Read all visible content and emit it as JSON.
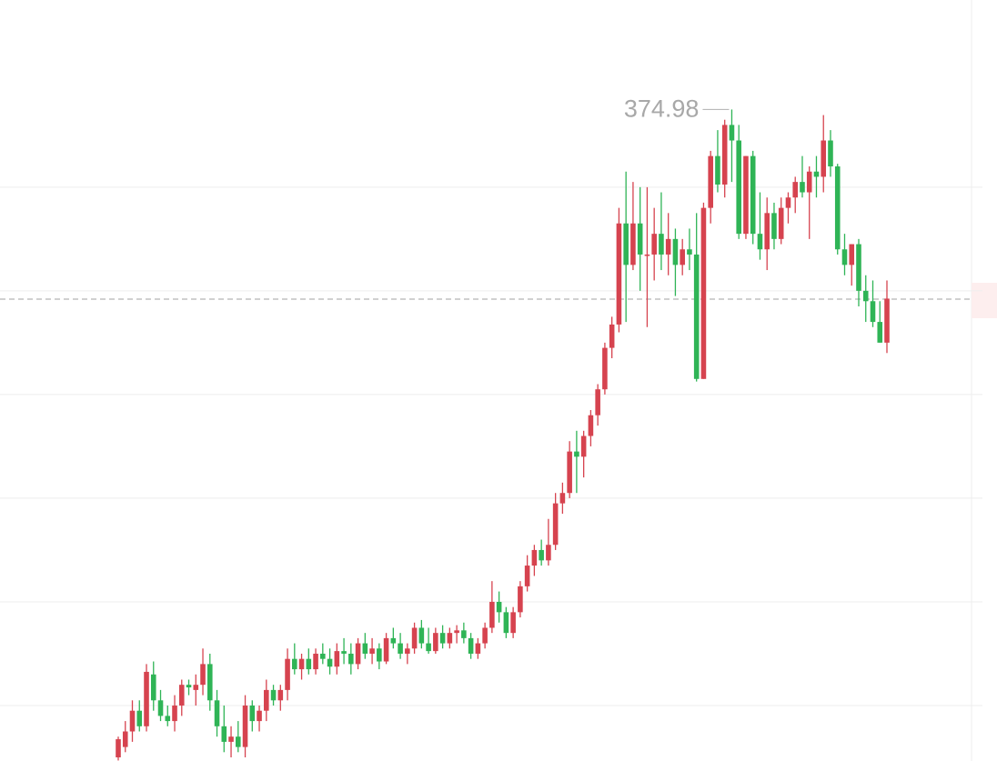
{
  "chart_data": {
    "type": "candlestick",
    "annotation": "374.98",
    "open": [
      250,
      252,
      255,
      259,
      256,
      266,
      261,
      258,
      257,
      260,
      264,
      263,
      264,
      268,
      261,
      256,
      253,
      254,
      252,
      260,
      257,
      259,
      263,
      261,
      263,
      269,
      267,
      269,
      267,
      270,
      269,
      267.5,
      270.5,
      270,
      268,
      272,
      270,
      271,
      268.5,
      273,
      272,
      270,
      271,
      275,
      272,
      270.5,
      274,
      272,
      274,
      274.5,
      273,
      270,
      272,
      275,
      280,
      278,
      274,
      278,
      283,
      287,
      290,
      288,
      291,
      299,
      301,
      309,
      308,
      312,
      316,
      321,
      329,
      333.5,
      353,
      345,
      353,
      347,
      347,
      351,
      347,
      350,
      345,
      348,
      347,
      323,
      356,
      366,
      360.5,
      372,
      369,
      351,
      366,
      351,
      348,
      355,
      350,
      356,
      358,
      361,
      359,
      363,
      362,
      369,
      364,
      348,
      345,
      349,
      340,
      338,
      334,
      330
    ],
    "high": [
      254,
      257,
      261,
      261,
      268,
      268.5,
      263,
      260,
      262,
      265,
      265,
      266,
      271,
      270,
      263,
      260,
      256,
      257,
      262,
      261,
      260,
      265,
      264,
      264,
      271,
      272,
      270,
      271,
      271,
      272,
      271,
      272,
      273,
      272,
      273,
      274,
      273,
      272,
      274,
      275,
      274,
      272,
      276,
      276.5,
      275,
      275,
      275.5,
      275,
      275.5,
      276,
      274,
      273,
      276,
      284,
      282,
      279,
      279,
      284,
      289,
      291,
      292,
      296,
      301,
      303,
      311,
      313,
      313,
      317,
      322,
      330,
      335,
      356,
      363,
      361,
      360,
      360,
      356,
      359,
      355,
      352,
      350,
      352,
      355,
      357,
      367,
      371,
      373,
      374.98,
      372,
      366,
      367,
      359,
      358,
      357,
      358,
      359,
      362,
      366,
      364,
      366,
      373.9,
      371,
      364.5,
      351,
      349,
      350,
      343,
      342,
      338,
      342
    ],
    "low": [
      249.4,
      251,
      253,
      255,
      255,
      259,
      257,
      256,
      255,
      258,
      262,
      260,
      262,
      259,
      254,
      251,
      250,
      251,
      250,
      255,
      255,
      257,
      260,
      259,
      261,
      266,
      265,
      266,
      266,
      268,
      266,
      266,
      268,
      266,
      267,
      269,
      268,
      267,
      268,
      271,
      269,
      268,
      270,
      271,
      270,
      270,
      271,
      271,
      272,
      272,
      269,
      269,
      271,
      274,
      276,
      273,
      273,
      277,
      282,
      285,
      287,
      287,
      290,
      297,
      300,
      301,
      304,
      310,
      314,
      320,
      327,
      332,
      334,
      344,
      340,
      333,
      342,
      344,
      343,
      339,
      343,
      344,
      322.5,
      323,
      353,
      359,
      358,
      361,
      350,
      350,
      349,
      346,
      344,
      348,
      349,
      353,
      355,
      358,
      350,
      358,
      359,
      362,
      347,
      343,
      341,
      337,
      334,
      333,
      330,
      328
    ],
    "close": [
      253.5,
      255,
      259,
      256,
      266.5,
      261,
      258,
      257,
      260,
      264,
      263.5,
      264,
      268,
      261,
      256,
      253,
      254,
      252,
      260,
      257,
      259,
      263,
      261,
      263,
      269,
      267,
      269,
      267,
      270,
      269,
      267.5,
      270.5,
      270,
      268,
      272,
      270,
      271,
      268.5,
      273,
      272,
      270,
      271,
      275,
      272,
      270.5,
      274,
      272,
      274,
      274.5,
      273,
      270,
      272,
      275,
      280,
      278,
      274,
      278,
      283,
      287,
      290,
      288,
      291,
      299,
      301,
      309,
      308,
      312,
      316,
      321,
      329,
      333.5,
      353,
      345,
      353,
      347,
      347,
      351,
      347,
      350,
      345,
      348,
      347,
      323,
      356,
      366,
      360.5,
      372,
      369,
      351,
      366,
      351,
      348,
      355,
      350,
      356,
      358,
      361,
      359,
      363,
      362,
      369,
      364,
      348,
      345,
      349,
      340,
      338,
      334,
      330,
      338.5
    ],
    "up_color": "#d6434f",
    "down_color": "#2fb456",
    "ylim": [
      249.3,
      396.1
    ],
    "yticks": [
      360,
      340,
      320,
      300,
      280,
      260
    ],
    "grid": true,
    "price_line": 338.4
  }
}
